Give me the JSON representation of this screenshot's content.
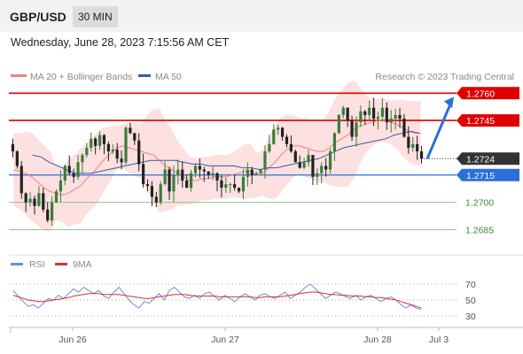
{
  "header": {
    "pair": "GBP/USD",
    "timeframe": "30 MIN"
  },
  "datetime": "Wednesday, June 28, 2023 7:15:56 AM CET",
  "credit": "Research © 2023 Trading Central",
  "colors": {
    "candle": "#222222",
    "candle_up": "#3a7d3a",
    "ma20": "#f08080",
    "bands": "#fde0e0",
    "ma50": "#3a5f9f",
    "resistance": "#e00000",
    "support": "#2a6fdb",
    "support_minor": "#8bc48b",
    "rsi": "#6a8fd8",
    "rsi_ma": "#e03030",
    "arrow": "#2a6fdb"
  },
  "chart_data": [
    {
      "type": "candlestick",
      "legend": [
        "MA 20 + Bollinger Bands",
        "MA 50"
      ],
      "x_ticks": [
        "Jun 26",
        "Jun 27",
        "Jun 28",
        "Jul 3"
      ],
      "ylim": [
        1.2675,
        1.2765
      ],
      "levels": [
        {
          "value": 1.276,
          "label": "1.2760",
          "kind": "resistance"
        },
        {
          "value": 1.2745,
          "label": "1.2745",
          "kind": "resistance"
        },
        {
          "value": 1.2724,
          "label": "1.2724",
          "kind": "current"
        },
        {
          "value": 1.2715,
          "label": "1.2715",
          "kind": "support"
        },
        {
          "value": 1.27,
          "label": "1.2700",
          "kind": "support_minor"
        },
        {
          "value": 1.2685,
          "label": "1.2685",
          "kind": "support_minor"
        }
      ],
      "close": [
        1.2728,
        1.272,
        1.2705,
        1.27,
        1.2702,
        1.2698,
        1.2705,
        1.2696,
        1.269,
        1.27,
        1.2706,
        1.2712,
        1.272,
        1.2716,
        1.2714,
        1.2722,
        1.2726,
        1.273,
        1.2735,
        1.2731,
        1.2737,
        1.2732,
        1.2728,
        1.2729,
        1.2724,
        1.2722,
        1.2741,
        1.2738,
        1.2734,
        1.2721,
        1.271,
        1.2709,
        1.2703,
        1.27,
        1.271,
        1.2718,
        1.2706,
        1.2715,
        1.2718,
        1.2712,
        1.2708,
        1.2716,
        1.272,
        1.2718,
        1.2717,
        1.2715,
        1.2716,
        1.2712,
        1.2708,
        1.271,
        1.271,
        1.2708,
        1.2706,
        1.2714,
        1.2718,
        1.2715,
        1.2716,
        1.2718,
        1.2728,
        1.2732,
        1.274,
        1.2741,
        1.2736,
        1.2732,
        1.2728,
        1.2722,
        1.2719,
        1.2722,
        1.2726,
        1.2714,
        1.2716,
        1.272,
        1.2718,
        1.2728,
        1.2738,
        1.2748,
        1.2752,
        1.2745,
        1.2736,
        1.2744,
        1.275,
        1.2748,
        1.2752,
        1.2746,
        1.2747,
        1.2752,
        1.2744,
        1.2746,
        1.2748,
        1.2746,
        1.2736,
        1.273,
        1.2732,
        1.2728,
        1.2724
      ],
      "ma20": [
        1.2718,
        1.2717,
        1.2716,
        1.2714,
        1.2711,
        1.2708,
        1.2706,
        1.2705,
        1.2704,
        1.2705,
        1.2707,
        1.2709,
        1.2713,
        1.2716,
        1.272,
        1.2724,
        1.2727,
        1.273,
        1.2731,
        1.273,
        1.2729,
        1.2728,
        1.2727,
        1.2726,
        1.2723,
        1.272,
        1.2718,
        1.2716,
        1.2714,
        1.2712,
        1.2712,
        1.2713,
        1.2713,
        1.2714,
        1.2714,
        1.2714,
        1.2715,
        1.2716,
        1.2717,
        1.2717,
        1.2715,
        1.2716,
        1.2719,
        1.2722,
        1.2726,
        1.2729,
        1.2731,
        1.2731,
        1.273,
        1.2729,
        1.2728,
        1.2728,
        1.273,
        1.2733,
        1.2735,
        1.2737,
        1.274,
        1.2742,
        1.2743,
        1.2744,
        1.2745,
        1.2745,
        1.2744,
        1.2743,
        1.2741,
        1.2739,
        1.2738,
        1.2738
      ],
      "ma50": [
        1.2726,
        1.2725,
        1.2722,
        1.272,
        1.2718,
        1.2716,
        1.2716,
        1.2716,
        1.2717,
        1.2718,
        1.2719,
        1.272,
        1.2721,
        1.2722,
        1.2723,
        1.2723,
        1.2723,
        1.2723,
        1.2722,
        1.2721,
        1.2721,
        1.272,
        1.272,
        1.272,
        1.272,
        1.2719,
        1.2719,
        1.2718,
        1.2719,
        1.2719,
        1.272,
        1.2721,
        1.2722,
        1.2723,
        1.2724,
        1.2726,
        1.2728,
        1.273,
        1.2731,
        1.2732,
        1.2733,
        1.2734,
        1.2735,
        1.2737,
        1.2738,
        1.2739,
        1.2738
      ],
      "arrow": {
        "from": 1.2724,
        "to": 1.2758
      }
    },
    {
      "type": "line",
      "legend": [
        "RSI",
        "9MA"
      ],
      "y_ticks": [
        70,
        50,
        30
      ],
      "ylim": [
        20,
        80
      ],
      "rsi": [
        62,
        55,
        48,
        42,
        44,
        40,
        46,
        52,
        50,
        56,
        52,
        58,
        64,
        60,
        66,
        62,
        58,
        62,
        55,
        52,
        60,
        66,
        58,
        50,
        44,
        40,
        48,
        46,
        52,
        58,
        50,
        62,
        66,
        60,
        54,
        52,
        56,
        52,
        58,
        60,
        54,
        50,
        56,
        52,
        48,
        54,
        58,
        54,
        50,
        56,
        58,
        54,
        52,
        56,
        60,
        52,
        56,
        60,
        66,
        70,
        64,
        58,
        52,
        56,
        60,
        58,
        54,
        52,
        56,
        50,
        54,
        56,
        52,
        48,
        52,
        54,
        50,
        44,
        40,
        44,
        40,
        38
      ],
      "rsi_ma": [
        56,
        54,
        52,
        50,
        49,
        48,
        48,
        49,
        50,
        51,
        52,
        53,
        55,
        56,
        57,
        58,
        58,
        58,
        57,
        57,
        57,
        57,
        56,
        55,
        54,
        53,
        52,
        52,
        53,
        54,
        55,
        56,
        57,
        57,
        57,
        56,
        55,
        55,
        55,
        55,
        55,
        54,
        54,
        54,
        54,
        54,
        54,
        54,
        53,
        53,
        54,
        54,
        54,
        54,
        55,
        56,
        57,
        58,
        59,
        60,
        60,
        59,
        58,
        57,
        57,
        56,
        56,
        55,
        55,
        55,
        54,
        54,
        53,
        53,
        52,
        51,
        50,
        48,
        46,
        44,
        42,
        40
      ]
    }
  ]
}
